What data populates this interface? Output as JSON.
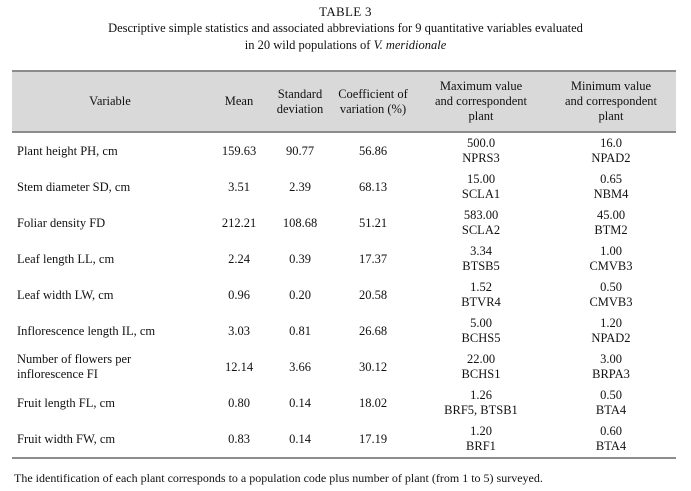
{
  "caption": {
    "table_label": "TABLE 3",
    "line1": "Descriptive simple statistics and associated abbreviations for 9 quantitative variables evaluated",
    "line2_prefix": "in 20 wild populations of ",
    "line2_species": "V. meridionale"
  },
  "columns": {
    "variable": "Variable",
    "mean": "Mean",
    "sd_line1": "Standard",
    "sd_line2": "deviation",
    "cv_line1": "Coefficient of",
    "cv_line2": "variation (%)",
    "max_line1": "Maximum value",
    "max_line2": "and correspondent",
    "max_line3": "plant",
    "min_line1": "Minimum value",
    "min_line2": "and correspondent",
    "min_line3": "plant"
  },
  "rows": [
    {
      "var1": "Plant height PH, cm",
      "var2": "",
      "mean": "159.63",
      "sd": "90.77",
      "cv": "56.86",
      "max": "500.0",
      "max_plant": "NPRS3",
      "min": "16.0",
      "min_plant": "NPAD2"
    },
    {
      "var1": "Stem diameter SD, cm",
      "var2": "",
      "mean": "3.51",
      "sd": "2.39",
      "cv": "68.13",
      "max": "15.00",
      "max_plant": "SCLA1",
      "min": "0.65",
      "min_plant": "NBM4"
    },
    {
      "var1": "Foliar density FD",
      "var2": "",
      "mean": "212.21",
      "sd": "108.68",
      "cv": "51.21",
      "max": "583.00",
      "max_plant": "SCLA2",
      "min": "45.00",
      "min_plant": "BTM2"
    },
    {
      "var1": "Leaf length LL, cm",
      "var2": "",
      "mean": "2.24",
      "sd": "0.39",
      "cv": "17.37",
      "max": "3.34",
      "max_plant": "BTSB5",
      "min": "1.00",
      "min_plant": "CMVB3"
    },
    {
      "var1": "Leaf width LW, cm",
      "var2": "",
      "mean": "0.96",
      "sd": "0.20",
      "cv": "20.58",
      "max": "1.52",
      "max_plant": "BTVR4",
      "min": "0.50",
      "min_plant": "CMVB3"
    },
    {
      "var1": "Inflorescence length IL, cm",
      "var2": "",
      "mean": "3.03",
      "sd": "0.81",
      "cv": "26.68",
      "max": "5.00",
      "max_plant": "BCHS5",
      "min": "1.20",
      "min_plant": "NPAD2"
    },
    {
      "var1": "Number of flowers per",
      "var2": "inflorescence FI",
      "mean": "12.14",
      "sd": "3.66",
      "cv": "30.12",
      "max": "22.00",
      "max_plant": "BCHS1",
      "min": "3.00",
      "min_plant": "BRPA3"
    },
    {
      "var1": "Fruit length FL, cm",
      "var2": "",
      "mean": "0.80",
      "sd": "0.14",
      "cv": "18.02",
      "max": "1.26",
      "max_plant": "BRF5, BTSB1",
      "min": "0.50",
      "min_plant": "BTA4"
    },
    {
      "var1": "Fruit width FW, cm",
      "var2": "",
      "mean": "0.83",
      "sd": "0.14",
      "cv": "17.19",
      "max": "1.20",
      "max_plant": "BRF1",
      "min": "0.60",
      "min_plant": "BTA4"
    }
  ],
  "footnote": "The identification of each plant corresponds to a population code plus number of plant (from 1 to 5) surveyed."
}
